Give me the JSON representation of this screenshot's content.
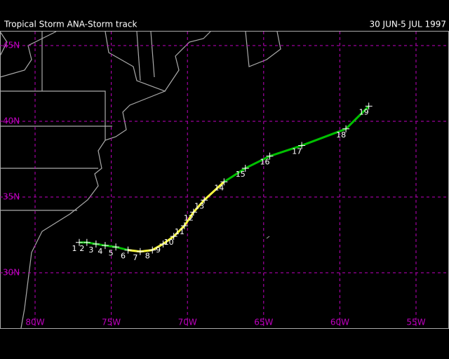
{
  "header": {
    "title": "Tropical Storm ANA-Storm track",
    "dates": "30 JUN-5 JUL 1997"
  },
  "lat_lines": [
    {
      "value": 45,
      "label": "45N"
    },
    {
      "value": 40,
      "label": "40N"
    },
    {
      "value": 35,
      "label": "35N"
    },
    {
      "value": 30,
      "label": "30N"
    }
  ],
  "lon_lines": [
    {
      "value": -80,
      "label": "80W"
    },
    {
      "value": -75,
      "label": "75W"
    },
    {
      "value": -70,
      "label": "70W"
    },
    {
      "value": -65,
      "label": "65W"
    },
    {
      "value": -60,
      "label": "60W"
    },
    {
      "value": -55,
      "label": "55W"
    }
  ],
  "grid_color": "#c000c0",
  "track": [
    {
      "label": "1",
      "lon": -77.1,
      "lat": 32.0,
      "color": "#00c000"
    },
    {
      "label": "2",
      "lon": -76.6,
      "lat": 32.0,
      "color": "#00c000"
    },
    {
      "label": "3",
      "lon": -76.0,
      "lat": 31.9,
      "color": "#00c000"
    },
    {
      "label": "4",
      "lon": -75.4,
      "lat": 31.8,
      "color": "#00c000"
    },
    {
      "label": "5",
      "lon": -74.7,
      "lat": 31.7,
      "color": "#00c000"
    },
    {
      "label": "6",
      "lon": -73.9,
      "lat": 31.5,
      "color": "#ffff40"
    },
    {
      "label": "7",
      "lon": -73.1,
      "lat": 31.4,
      "color": "#ffff40"
    },
    {
      "label": "8",
      "lon": -72.3,
      "lat": 31.5,
      "color": "#ffff40"
    },
    {
      "label": "9",
      "lon": -71.6,
      "lat": 31.9,
      "color": "#ffff40"
    },
    {
      "label": "10",
      "lon": -70.9,
      "lat": 32.4,
      "color": "#ffff40"
    },
    {
      "label": "11",
      "lon": -70.2,
      "lat": 33.1,
      "color": "#ffff40"
    },
    {
      "label": "12",
      "lon": -69.6,
      "lat": 34.0,
      "color": "#ffff40"
    },
    {
      "label": "13",
      "lon": -68.9,
      "lat": 34.8,
      "color": "#ffff40"
    },
    {
      "label": "14",
      "lon": -67.6,
      "lat": 36.0,
      "color": "#00c000"
    },
    {
      "label": "15",
      "lon": -66.2,
      "lat": 36.9,
      "color": "#00c000"
    },
    {
      "label": "16",
      "lon": -64.6,
      "lat": 37.7,
      "color": "#00c000"
    },
    {
      "label": "17",
      "lon": -62.5,
      "lat": 38.4,
      "color": "#00c000"
    },
    {
      "label": "18",
      "lon": -59.6,
      "lat": 39.5,
      "color": "#00c000"
    },
    {
      "label": "19",
      "lon": -58.1,
      "lat": 41.0,
      "color": "#00c000"
    }
  ]
}
